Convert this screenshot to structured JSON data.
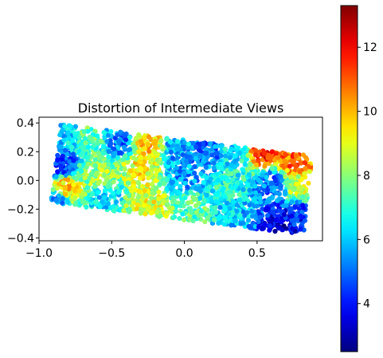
{
  "chart_data": {
    "type": "scatter",
    "title": "Distortion of Intermediate Views",
    "xlabel": "",
    "ylabel": "",
    "xlim": [
      -1.0,
      0.95
    ],
    "ylim": [
      -0.42,
      0.44
    ],
    "x_ticks": [
      -1.0,
      -0.5,
      0.0,
      0.5
    ],
    "x_tick_labels": [
      "−1.0",
      "−0.5",
      "0.0",
      "0.5"
    ],
    "y_ticks": [
      -0.4,
      -0.2,
      0.0,
      0.2,
      0.4
    ],
    "y_tick_labels": [
      "−0.4",
      "−0.2",
      "0.0",
      "0.2",
      "0.4"
    ],
    "grid": false,
    "aspect": "equal",
    "colormap": "jet",
    "colorbar": {
      "range": [
        2.5,
        13.3
      ],
      "ticks": [
        4,
        6,
        8,
        10,
        12
      ],
      "tick_labels": [
        "4",
        "6",
        "8",
        "10",
        "12"
      ],
      "position": "right"
    },
    "region": {
      "shape": "tilted rectangle",
      "corners": [
        [
          -0.85,
          0.39
        ],
        [
          0.88,
          0.17
        ],
        [
          0.82,
          -0.38
        ],
        [
          -0.92,
          -0.16
        ]
      ]
    },
    "points": [
      {
        "x": -0.8,
        "y": 0.33,
        "v": 6.1
      },
      {
        "x": -0.65,
        "y": 0.3,
        "v": 7.6
      },
      {
        "x": -0.45,
        "y": 0.27,
        "v": 5.2
      },
      {
        "x": -0.25,
        "y": 0.25,
        "v": 9.8
      },
      {
        "x": -0.05,
        "y": 0.22,
        "v": 5.7
      },
      {
        "x": 0.15,
        "y": 0.19,
        "v": 4.9
      },
      {
        "x": 0.35,
        "y": 0.17,
        "v": 6.4
      },
      {
        "x": 0.55,
        "y": 0.19,
        "v": 11.5
      },
      {
        "x": 0.75,
        "y": 0.13,
        "v": 10.8
      },
      {
        "x": -0.85,
        "y": 0.1,
        "v": 4.3
      },
      {
        "x": -0.6,
        "y": 0.05,
        "v": 8.2
      },
      {
        "x": -0.3,
        "y": 0.08,
        "v": 9.2
      },
      {
        "x": 0.0,
        "y": 0.05,
        "v": 5.5
      },
      {
        "x": 0.3,
        "y": 0.0,
        "v": 6.8
      },
      {
        "x": 0.6,
        "y": -0.02,
        "v": 5.0
      },
      {
        "x": 0.8,
        "y": -0.05,
        "v": 8.6
      },
      {
        "x": -0.82,
        "y": -0.05,
        "v": 9.9
      },
      {
        "x": -0.55,
        "y": -0.12,
        "v": 6.2
      },
      {
        "x": -0.25,
        "y": -0.2,
        "v": 8.9
      },
      {
        "x": 0.05,
        "y": -0.22,
        "v": 7.4
      },
      {
        "x": 0.35,
        "y": -0.28,
        "v": 5.9
      },
      {
        "x": 0.65,
        "y": -0.33,
        "v": 3.4
      },
      {
        "x": 0.8,
        "y": -0.25,
        "v": 4.1
      },
      {
        "x": -0.88,
        "y": -0.14,
        "v": 5.4
      }
    ]
  }
}
